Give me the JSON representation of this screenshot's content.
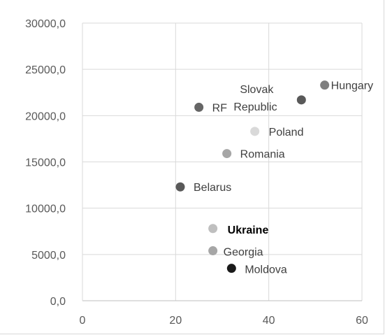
{
  "chart_data": {
    "type": "scatter",
    "title": "",
    "xlabel": "",
    "ylabel": "",
    "xlim": [
      0,
      60
    ],
    "ylim": [
      0,
      30000
    ],
    "x_ticks": [
      "0",
      "20",
      "40",
      "60"
    ],
    "y_ticks": [
      "0,0",
      "5000,0",
      "10000,0",
      "15000,0",
      "20000,0",
      "25000,0",
      "30000,0"
    ],
    "grid": true,
    "legend": "none",
    "points": [
      {
        "label_lines": [
          "Hungary"
        ],
        "x": 52,
        "y": 23300,
        "color": "#7f7f7f",
        "bold": false
      },
      {
        "label_lines": [
          "Slovak",
          "Republic"
        ],
        "x": 47,
        "y": 21700,
        "color": "#595959",
        "bold": false
      },
      {
        "label_lines": [
          "RF"
        ],
        "x": 25,
        "y": 20900,
        "color": "#666666",
        "bold": false
      },
      {
        "label_lines": [
          "Poland"
        ],
        "x": 37,
        "y": 18300,
        "color": "#d9d9d9",
        "bold": false
      },
      {
        "label_lines": [
          "Romania"
        ],
        "x": 31,
        "y": 15900,
        "color": "#a6a6a6",
        "bold": false
      },
      {
        "label_lines": [
          "Belarus"
        ],
        "x": 21,
        "y": 12300,
        "color": "#595959",
        "bold": false
      },
      {
        "label_lines": [
          "Ukraine"
        ],
        "x": 28,
        "y": 7800,
        "color": "#bfbfbf",
        "bold": true
      },
      {
        "label_lines": [
          "Georgia"
        ],
        "x": 28,
        "y": 5400,
        "color": "#a6a6a6",
        "bold": false
      },
      {
        "label_lines": [
          "Moldova"
        ],
        "x": 32,
        "y": 3500,
        "color": "#1a1a1a",
        "bold": false
      }
    ]
  }
}
